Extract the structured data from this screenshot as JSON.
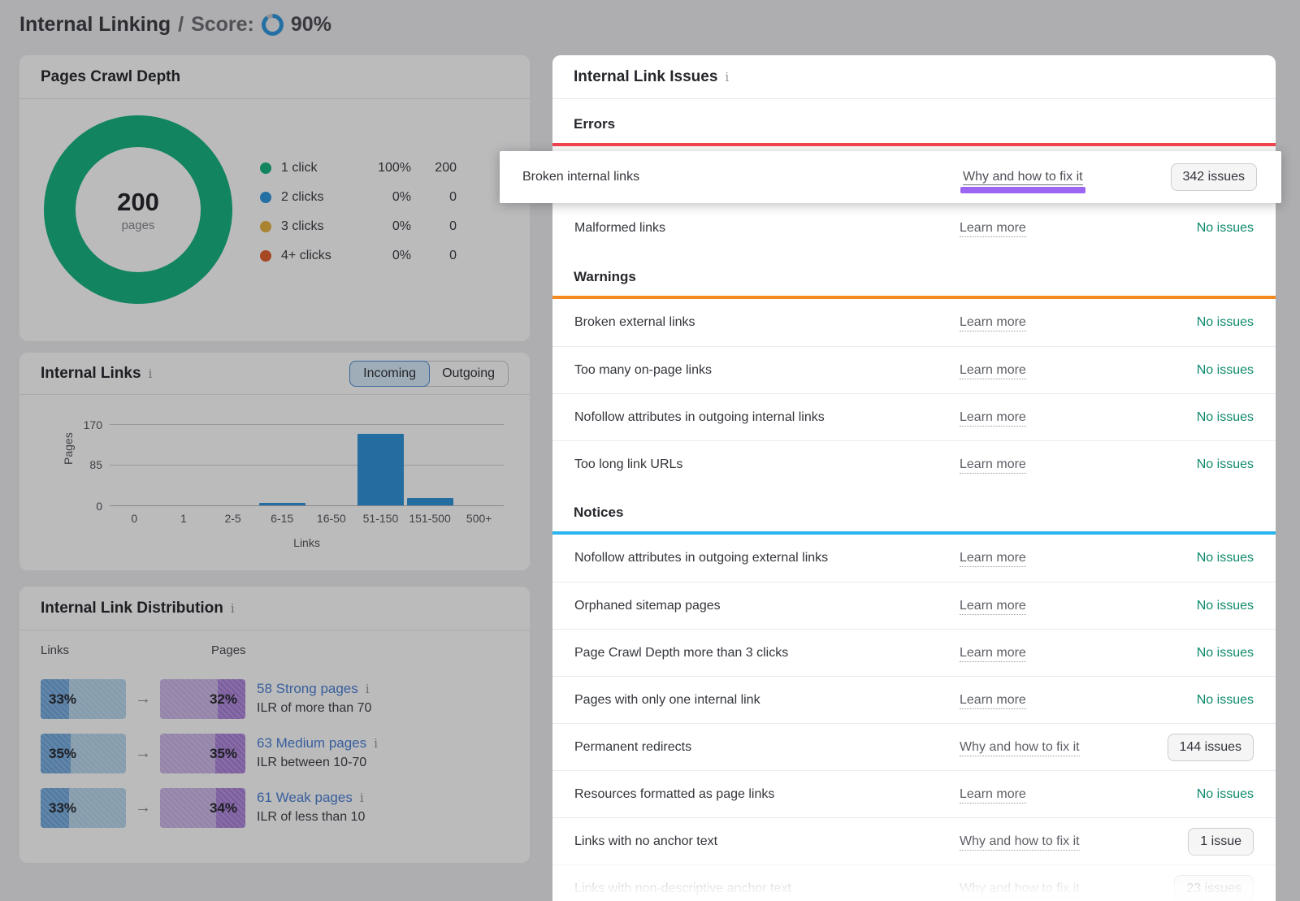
{
  "header": {
    "title": "Internal Linking",
    "separator": "/",
    "score_label": "Score:",
    "score_value": "90%",
    "score_percent": 90,
    "score_ring_color": "#2f97dd",
    "score_ring_rest_color": "#c3c7cd"
  },
  "crawl_depth_card": {
    "title": "Pages Crawl Depth",
    "center_value": "200",
    "center_label": "pages",
    "chart_data": {
      "type": "donut",
      "title": "Pages Crawl Depth",
      "unit": "pages",
      "total": 200,
      "segments": [
        {
          "label": "1 click",
          "percent": "100%",
          "count": "200",
          "color": "#15b37f"
        },
        {
          "label": "2 clicks",
          "percent": "0%",
          "count": "0",
          "color": "#2f97dd"
        },
        {
          "label": "3 clicks",
          "percent": "0%",
          "count": "0",
          "color": "#e8b23f"
        },
        {
          "label": "4+ clicks",
          "percent": "0%",
          "count": "0",
          "color": "#e2602c"
        }
      ]
    }
  },
  "internal_links_card": {
    "title": "Internal Links",
    "info_icon": "i",
    "toggle": {
      "options": [
        "Incoming",
        "Outgoing"
      ],
      "selected": "Incoming"
    },
    "chart_data": {
      "type": "bar",
      "categories": [
        "0",
        "1",
        "2-5",
        "6-15",
        "16-50",
        "51-150",
        "151-500",
        "500+"
      ],
      "values": [
        0,
        0,
        0,
        4,
        0,
        150,
        16,
        0
      ],
      "y_ticks": [
        0,
        85,
        170
      ],
      "y_max": 170,
      "xlabel": "Links",
      "ylabel": "Pages",
      "bar_color": "#2e93d9",
      "grid": true
    }
  },
  "distribution_card": {
    "title": "Internal Link Distribution",
    "info_icon": "i",
    "columns": {
      "links": "Links",
      "pages": "Pages"
    },
    "colors": {
      "links_light": "#b5d6ec",
      "links_dark": "#6fa8dd",
      "pages_light": "#cbb4e6",
      "pages_dark": "#aa7fd9"
    },
    "arrow": "→",
    "rows": [
      {
        "links_pct": "33%",
        "pages_pct": "32%",
        "page_link": "58 Strong pages",
        "ilr": "ILR of more than 70"
      },
      {
        "links_pct": "35%",
        "pages_pct": "35%",
        "page_link": "63 Medium pages",
        "ilr": "ILR between 10-70"
      },
      {
        "links_pct": "33%",
        "pages_pct": "34%",
        "page_link": "61 Weak pages",
        "ilr": "ILR of less than 10"
      }
    ]
  },
  "issues_card": {
    "title": "Internal Link Issues",
    "info_icon": "i",
    "sections": [
      {
        "name": "Errors",
        "color": "#f4444f",
        "rows": [
          {
            "title": "Broken internal links",
            "link": "Why and how to fix it",
            "status": "342 issues",
            "status_type": "button",
            "highlighted": true
          },
          {
            "title": "Malformed links",
            "link": "Learn more",
            "status": "No issues",
            "status_type": "ok"
          }
        ]
      },
      {
        "name": "Warnings",
        "color": "#f58a1f",
        "rows": [
          {
            "title": "Broken external links",
            "link": "Learn more",
            "status": "No issues",
            "status_type": "ok"
          },
          {
            "title": "Too many on-page links",
            "link": "Learn more",
            "status": "No issues",
            "status_type": "ok"
          },
          {
            "title": "Nofollow attributes in outgoing internal links",
            "link": "Learn more",
            "status": "No issues",
            "status_type": "ok"
          },
          {
            "title": "Too long link URLs",
            "link": "Learn more",
            "status": "No issues",
            "status_type": "ok"
          }
        ]
      },
      {
        "name": "Notices",
        "color": "#29b5f0",
        "rows": [
          {
            "title": "Nofollow attributes in outgoing external links",
            "link": "Learn more",
            "status": "No issues",
            "status_type": "ok"
          },
          {
            "title": "Orphaned sitemap pages",
            "link": "Learn more",
            "status": "No issues",
            "status_type": "ok"
          },
          {
            "title": "Page Crawl Depth more than 3 clicks",
            "link": "Learn more",
            "status": "No issues",
            "status_type": "ok"
          },
          {
            "title": "Pages with only one internal link",
            "link": "Learn more",
            "status": "No issues",
            "status_type": "ok"
          },
          {
            "title": "Permanent redirects",
            "link": "Why and how to fix it",
            "status": "144 issues",
            "status_type": "button"
          },
          {
            "title": "Resources formatted as page links",
            "link": "Learn more",
            "status": "No issues",
            "status_type": "ok"
          },
          {
            "title": "Links with no anchor text",
            "link": "Why and how to fix it",
            "status": "1 issue",
            "status_type": "button"
          },
          {
            "title": "Links with non-descriptive anchor text",
            "link": "Why and how to fix it",
            "status": "23 issues",
            "status_type": "button"
          }
        ]
      }
    ]
  },
  "colors": {
    "highlight_marker": "#9d66f2",
    "ok_status": "#0f8a6d",
    "link_blue": "#4a80d4",
    "overlay": "rgba(10,12,16,0.28)"
  }
}
